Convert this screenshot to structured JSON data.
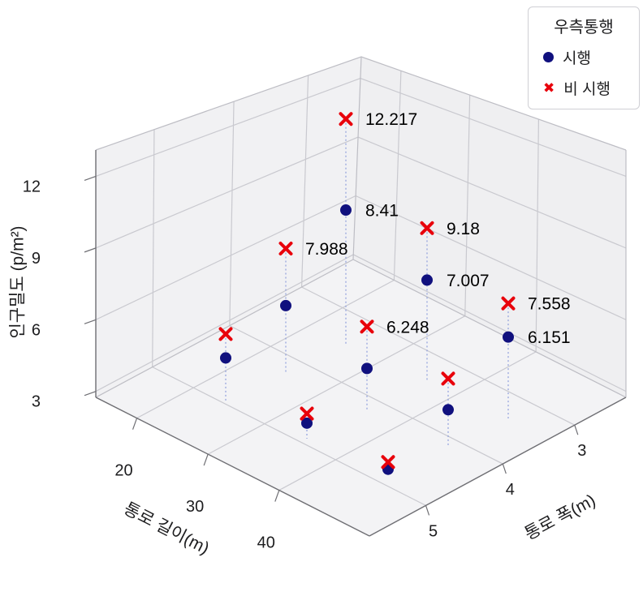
{
  "figure": {
    "background": "#ffffff"
  },
  "legend": {
    "title": "우측통행",
    "items": [
      {
        "label": "시행",
        "marker": "circle",
        "color": "#10107e"
      },
      {
        "label": "비 시행",
        "marker": "x",
        "color": "#e8000b"
      }
    ]
  },
  "chart_data": {
    "type": "scatter",
    "projection": "3d",
    "title": "",
    "xlabel": "통로 길이(m)",
    "ylabel": "통로 폭(m)",
    "zlabel": "인구밀도 (p/m²)",
    "xticks": [
      20,
      30,
      40
    ],
    "yticks": [
      3,
      4,
      5
    ],
    "zticks": [
      3,
      6,
      9,
      12
    ],
    "xlim": [
      15,
      45
    ],
    "ylim": [
      2.75,
      5.25
    ],
    "zlim": [
      2.75,
      13
    ],
    "grid": true,
    "legend_position": "upper right",
    "stem_lines": true,
    "series": [
      {
        "name": "시행",
        "marker": "circle",
        "color": "#10107e",
        "points": [
          {
            "x": 20,
            "y": 3,
            "z": 8.41,
            "label": "8.41"
          },
          {
            "x": 30,
            "y": 3,
            "z": 7.007,
            "label": "7.007"
          },
          {
            "x": 40,
            "y": 3,
            "z": 6.151,
            "label": "6.151"
          },
          {
            "x": 20,
            "y": 4,
            "z": 5.6,
            "estimated": true
          },
          {
            "x": 30,
            "y": 4,
            "z": 4.5,
            "estimated": true
          },
          {
            "x": 40,
            "y": 4,
            "z": 4.3,
            "estimated": true
          },
          {
            "x": 20,
            "y": 5,
            "z": 4.6,
            "estimated": true
          },
          {
            "x": 30,
            "y": 5,
            "z": 3.4,
            "estimated": true
          },
          {
            "x": 40,
            "y": 5,
            "z": 3.0,
            "estimated": true
          }
        ]
      },
      {
        "name": "비 시행",
        "marker": "x",
        "color": "#e8000b",
        "points": [
          {
            "x": 20,
            "y": 3,
            "z": 12.217,
            "label": "12.217"
          },
          {
            "x": 30,
            "y": 3,
            "z": 9.18,
            "label": "9.18"
          },
          {
            "x": 40,
            "y": 3,
            "z": 7.558,
            "label": "7.558"
          },
          {
            "x": 20,
            "y": 4,
            "z": 7.988,
            "label": "7.988"
          },
          {
            "x": 30,
            "y": 4,
            "z": 6.248,
            "label": "6.248"
          },
          {
            "x": 40,
            "y": 4,
            "z": 5.6,
            "estimated": true
          },
          {
            "x": 20,
            "y": 5,
            "z": 5.6,
            "estimated": true
          },
          {
            "x": 30,
            "y": 5,
            "z": 3.8,
            "estimated": true
          },
          {
            "x": 40,
            "y": 5,
            "z": 3.3,
            "estimated": true
          }
        ]
      }
    ]
  }
}
